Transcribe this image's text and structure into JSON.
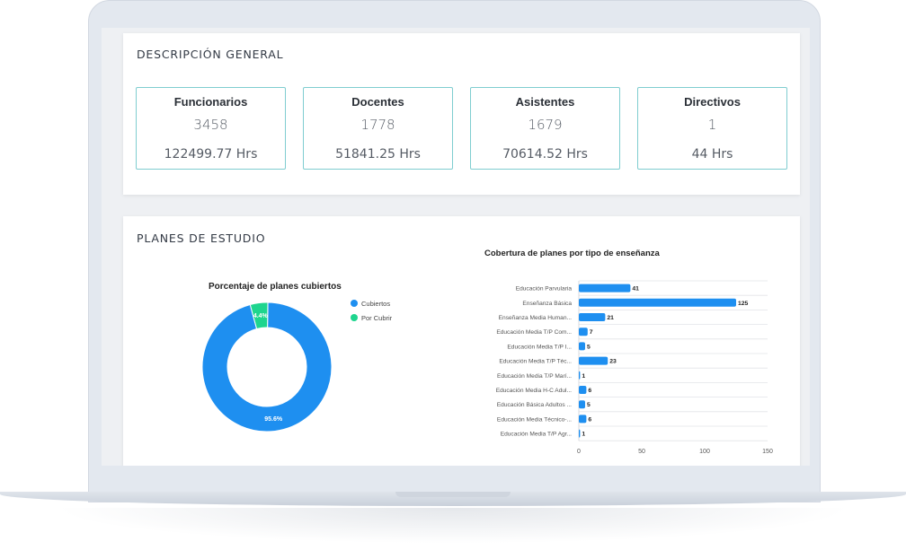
{
  "general": {
    "title": "DESCRIPCIÓN GENERAL",
    "stats": [
      {
        "label": "Funcionarios",
        "value": "3458",
        "hours": "122499.77 Hrs"
      },
      {
        "label": "Docentes",
        "value": "1778",
        "hours": "51841.25 Hrs"
      },
      {
        "label": "Asistentes",
        "value": "1679",
        "hours": "70614.52 Hrs"
      },
      {
        "label": "Directivos",
        "value": "1",
        "hours": "44 Hrs"
      }
    ]
  },
  "planes": {
    "title": "PLANES DE ESTUDIO",
    "donut_title": "Porcentaje de planes cubiertos",
    "legend": [
      {
        "label": "Cubiertos",
        "color": "#1e8ff0"
      },
      {
        "label": "Por Cubrir",
        "color": "#1ed58e"
      }
    ],
    "bar_title": "Cobertura de planes por tipo de enseñanza"
  },
  "chart_data": [
    {
      "type": "pie",
      "title": "Porcentaje de planes cubiertos",
      "categories": [
        "Cubiertos",
        "Por Cubrir"
      ],
      "values": [
        95.6,
        4.4
      ],
      "labels": [
        "95.6%",
        "4.4%"
      ],
      "colors": [
        "#1e8ff0",
        "#1ed58e"
      ],
      "donut": true,
      "legend": "right"
    },
    {
      "type": "bar",
      "orientation": "horizontal",
      "title": "Cobertura de planes por tipo de enseñanza",
      "categories": [
        "Educación Parvularia",
        "Enseñanza Básica",
        "Enseñanza Media Human...",
        "Educación Media T/P Com...",
        "Educación Media T/P I...",
        "Educación  Media T/P Téc...",
        "Educación Media T/P Marí...",
        "Educación Media H-C Adul...",
        "Educación Básica Adultos ...",
        "Educación Media Técnico-...",
        "Educación  Media T/P Agr..."
      ],
      "values": [
        41,
        125,
        21,
        7,
        5,
        23,
        1,
        6,
        5,
        6,
        1
      ],
      "xlim": [
        0,
        150
      ],
      "xticks": [
        "0",
        "50",
        "100",
        "150"
      ],
      "color": "#1e8ff0",
      "grid": true
    }
  ]
}
